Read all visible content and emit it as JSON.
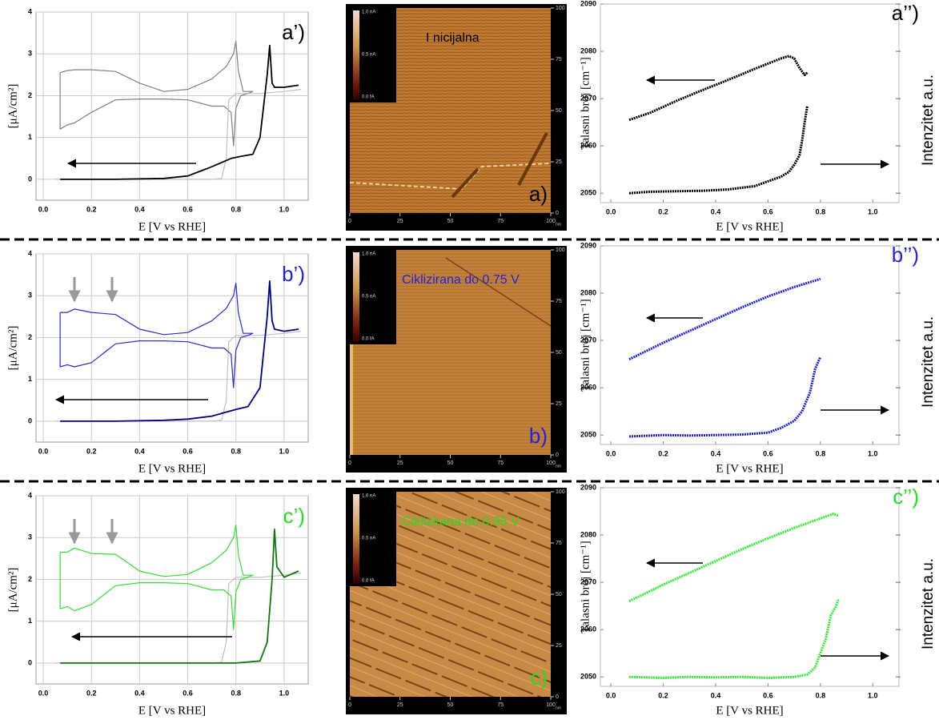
{
  "chart_data": [
    {
      "type": "line",
      "annotation": "a’)",
      "annotation_color": "#000000",
      "xlabel": "E [V vs RHE]",
      "ylabel": "[μA/cm²]",
      "grid": true,
      "xlim": [
        -0.03,
        1.1
      ],
      "ylim": [
        -0.5,
        4
      ],
      "xticks": [
        {
          "value": 0,
          "label": "0.0"
        },
        0.2,
        0.4,
        0.6,
        0.8,
        {
          "value": 1,
          "label": "1.0"
        }
      ],
      "yticks": [
        0,
        1,
        2,
        3,
        4
      ],
      "series": [
        {
          "color": "#808080",
          "x": [
            0.07,
            0.1,
            0.13,
            0.2,
            0.3,
            0.4,
            0.5,
            0.6,
            0.7,
            0.76,
            0.79,
            0.8,
            0.81,
            0.83,
            0.87,
            0.85,
            0.82,
            0.8,
            0.79,
            0.78,
            0.75,
            0.7,
            0.6,
            0.5,
            0.4,
            0.3,
            0.2,
            0.13,
            0.1,
            0.07,
            0.07
          ],
          "values": [
            2.55,
            2.6,
            2.62,
            2.62,
            2.58,
            2.3,
            2.1,
            2.15,
            2.4,
            2.7,
            3.0,
            3.3,
            2.6,
            2.1,
            2.1,
            2.05,
            2.0,
            1.7,
            0.8,
            1.6,
            1.75,
            1.75,
            1.9,
            1.92,
            1.92,
            1.9,
            1.6,
            1.35,
            1.3,
            1.2,
            2.55
          ]
        },
        {
          "color": "#c0c0c0",
          "x": [
            0.05,
            0.7,
            0.74,
            0.76,
            0.77,
            0.8,
            0.9,
            1.0,
            1.07
          ],
          "values": [
            0,
            0,
            0.02,
            0.5,
            1.9,
            2.05,
            2.05,
            2.1,
            2.15
          ]
        },
        {
          "color": "#000000",
          "x": [
            0.07,
            0.3,
            0.5,
            0.6,
            0.7,
            0.78,
            0.82,
            0.87,
            0.9,
            0.93,
            0.94,
            0.95,
            0.96,
            1.0,
            1.06
          ],
          "values": [
            0,
            0,
            0.02,
            0.08,
            0.3,
            0.5,
            0.55,
            0.6,
            1.0,
            2.5,
            3.2,
            2.3,
            2.2,
            2.2,
            2.25
          ]
        }
      ]
    },
    {
      "type": "image",
      "title": "I nicijalna",
      "title_color": "#000000",
      "label": "a)",
      "label_color": "#000000",
      "texture": "terraces",
      "colorbar": [
        "1.0 nA",
        "0.5 nA",
        "0.0 fA"
      ],
      "unit": "nm",
      "xlim": [
        0,
        100
      ],
      "ylim": [
        0,
        100
      ],
      "xticks": [
        0,
        25,
        50,
        75,
        100
      ],
      "yticks": [
        0,
        25,
        50,
        75,
        100
      ]
    },
    {
      "type": "line",
      "annotation": "a’’)",
      "annotation_color": "#000000",
      "xlabel": "E [V vs RHE]",
      "ylabel": "Talasni broj [cm⁻¹]",
      "y2label": "Intenzitet a.u.",
      "grid": false,
      "xlim": [
        -0.04,
        1.1
      ],
      "ylim": [
        2048,
        2090
      ],
      "xticks": [
        {
          "value": 0,
          "label": "0.0"
        },
        0.2,
        0.4,
        0.6,
        0.8,
        {
          "value": 1,
          "label": "1.0"
        }
      ],
      "yticks": [
        2050,
        2060,
        2070,
        2080,
        2090
      ],
      "series": [
        {
          "color": "#000000",
          "x": [
            0.07,
            0.15,
            0.25,
            0.35,
            0.45,
            0.55,
            0.65,
            0.68,
            0.7,
            0.72,
            0.74,
            0.75
          ],
          "values": [
            2065.5,
            2067,
            2069.5,
            2071.8,
            2074,
            2076.3,
            2078.5,
            2079,
            2078.5,
            2076.5,
            2075,
            2075.5
          ]
        },
        {
          "color": "#000000",
          "x": [
            0.07,
            0.15,
            0.25,
            0.35,
            0.45,
            0.55,
            0.6,
            0.65,
            0.68,
            0.7,
            0.72,
            0.73,
            0.74,
            0.75
          ],
          "values": [
            2050,
            2050.3,
            2050.4,
            2050.5,
            2050.8,
            2051.5,
            2052.5,
            2053.5,
            2054.5,
            2056,
            2058,
            2061,
            2065,
            2068.5
          ]
        }
      ]
    },
    {
      "type": "line",
      "annotation": "b’)",
      "annotation_color": "#2222dd",
      "xlabel": "E [V vs RHE]",
      "ylabel": "[μA/cm²]",
      "grid": true,
      "xlim": [
        -0.03,
        1.1
      ],
      "ylim": [
        -0.5,
        4
      ],
      "xticks": [
        {
          "value": 0,
          "label": "0.0"
        },
        0.2,
        0.4,
        0.6,
        0.8,
        {
          "value": 1,
          "label": "1.0"
        }
      ],
      "yticks": [
        0,
        1,
        2,
        3,
        4
      ],
      "series": [
        {
          "color": "#c0c0c0",
          "x": [
            0.05,
            0.7,
            0.74,
            0.76,
            0.77,
            0.8,
            0.9,
            1.0,
            1.07
          ],
          "values": [
            0,
            0,
            0.02,
            0.5,
            1.9,
            2.05,
            2.05,
            2.1,
            2.15
          ]
        },
        {
          "color": "#2a2ad0",
          "x": [
            0.07,
            0.1,
            0.13,
            0.2,
            0.3,
            0.4,
            0.5,
            0.6,
            0.7,
            0.76,
            0.79,
            0.8,
            0.81,
            0.83,
            0.87,
            0.85,
            0.82,
            0.8,
            0.79,
            0.78,
            0.75,
            0.7,
            0.6,
            0.5,
            0.4,
            0.3,
            0.2,
            0.13,
            0.1,
            0.07,
            0.07
          ],
          "values": [
            2.6,
            2.6,
            2.68,
            2.6,
            2.55,
            2.2,
            2.07,
            2.12,
            2.4,
            2.7,
            3.0,
            3.3,
            2.6,
            2.1,
            2.1,
            2.05,
            2.0,
            1.7,
            0.8,
            1.6,
            1.75,
            1.75,
            1.9,
            1.92,
            1.92,
            1.85,
            1.4,
            1.3,
            1.35,
            1.3,
            2.6
          ]
        },
        {
          "color": "#000080",
          "x": [
            0.07,
            0.3,
            0.5,
            0.6,
            0.7,
            0.75,
            0.8,
            0.85,
            0.9,
            0.93,
            0.94,
            0.95,
            0.96,
            1.0,
            1.06
          ],
          "values": [
            0,
            0,
            0.02,
            0.05,
            0.12,
            0.2,
            0.28,
            0.35,
            0.8,
            2.5,
            3.35,
            2.4,
            2.2,
            2.15,
            2.2
          ]
        }
      ]
    },
    {
      "type": "image",
      "title": "Ciklizirana do 0.75 V",
      "title_color": "#2222dd",
      "label": "b)",
      "label_color": "#2222dd",
      "texture": "flat",
      "colorbar": [
        "1.0 nA",
        "0.5 nA",
        "0.0 fA"
      ],
      "unit": "nm",
      "xlim": [
        0,
        100
      ],
      "ylim": [
        0,
        100
      ],
      "xticks": [
        0,
        25,
        50,
        75,
        100
      ],
      "yticks": [
        0,
        25,
        50,
        75,
        100
      ]
    },
    {
      "type": "line",
      "annotation": "b’’)",
      "annotation_color": "#2222dd",
      "xlabel": "E [V vs RHE]",
      "ylabel": "Talasni broj [cm⁻¹]",
      "y2label": "Intenzitet a.u.",
      "grid": false,
      "xlim": [
        -0.04,
        1.1
      ],
      "ylim": [
        2048,
        2090
      ],
      "xticks": [
        {
          "value": 0,
          "label": "0.0"
        },
        0.2,
        0.4,
        0.6,
        0.8,
        {
          "value": 1,
          "label": "1.0"
        }
      ],
      "yticks": [
        2050,
        2060,
        2070,
        2080,
        2090
      ],
      "series": [
        {
          "color": "#2222dd",
          "x": [
            0.07,
            0.2,
            0.3,
            0.4,
            0.5,
            0.6,
            0.7,
            0.8
          ],
          "values": [
            2066,
            2069.5,
            2072,
            2074.5,
            2077,
            2079.3,
            2081.3,
            2083
          ]
        },
        {
          "color": "#2222dd",
          "x": [
            0.07,
            0.2,
            0.3,
            0.4,
            0.5,
            0.6,
            0.65,
            0.7,
            0.73,
            0.76,
            0.78,
            0.8
          ],
          "values": [
            2049.7,
            2050,
            2049.9,
            2050,
            2050.1,
            2050.5,
            2051.5,
            2053,
            2055,
            2059,
            2064,
            2066.5
          ]
        }
      ]
    },
    {
      "type": "line",
      "annotation": "c’)",
      "annotation_color": "#22dd22",
      "xlabel": "E [V vs RHE]",
      "ylabel": "[μA/cm²]",
      "grid": true,
      "xlim": [
        -0.03,
        1.1
      ],
      "ylim": [
        -0.5,
        4
      ],
      "xticks": [
        {
          "value": 0,
          "label": "0.0"
        },
        0.2,
        0.4,
        0.6,
        0.8,
        {
          "value": 1,
          "label": "1.0"
        }
      ],
      "yticks": [
        0,
        1,
        2,
        3,
        4
      ],
      "series": [
        {
          "color": "#c0c0c0",
          "x": [
            0.05,
            0.7,
            0.74,
            0.76,
            0.77,
            0.8,
            0.9,
            1.0,
            1.07
          ],
          "values": [
            0,
            0,
            0.02,
            0.5,
            1.9,
            2.05,
            2.05,
            2.1,
            2.15
          ]
        },
        {
          "color": "#33dd33",
          "x": [
            0.07,
            0.1,
            0.13,
            0.2,
            0.3,
            0.4,
            0.5,
            0.6,
            0.7,
            0.76,
            0.79,
            0.8,
            0.81,
            0.83,
            0.87,
            0.85,
            0.82,
            0.8,
            0.79,
            0.78,
            0.75,
            0.7,
            0.6,
            0.5,
            0.4,
            0.3,
            0.2,
            0.13,
            0.1,
            0.07,
            0.07
          ],
          "values": [
            2.65,
            2.65,
            2.75,
            2.62,
            2.6,
            2.2,
            2.07,
            2.12,
            2.4,
            2.7,
            3.0,
            3.3,
            2.6,
            2.1,
            2.1,
            2.05,
            2.0,
            1.7,
            0.8,
            1.6,
            1.75,
            1.75,
            1.9,
            1.92,
            1.92,
            1.85,
            1.4,
            1.25,
            1.35,
            1.3,
            2.65
          ]
        },
        {
          "color": "#117711",
          "x": [
            0.07,
            0.5,
            0.8,
            0.9,
            0.93,
            0.95,
            0.96,
            0.97,
            1.0,
            1.06
          ],
          "values": [
            0,
            0,
            0,
            0.05,
            0.5,
            2.0,
            3.2,
            2.3,
            2.05,
            2.2
          ]
        }
      ]
    },
    {
      "type": "image",
      "title": "Ciklizirana do 0.95 V",
      "title_color": "#22dd22",
      "label": "c)",
      "label_color": "#22dd22",
      "texture": "steps",
      "colorbar": [
        "1.0 nA",
        "0.5 nA",
        "0.0 fA"
      ],
      "unit": "nm",
      "xlim": [
        0,
        100
      ],
      "ylim": [
        0,
        100
      ],
      "xticks": [
        0,
        25,
        50,
        75,
        100
      ],
      "yticks": [
        0,
        25,
        50,
        75,
        100
      ]
    },
    {
      "type": "line",
      "annotation": "c’’)",
      "annotation_color": "#22dd22",
      "xlabel": "E [V vs RHE]",
      "ylabel": "Talasni broj [cm⁻¹]",
      "y2label": "Intenzitet a.u.",
      "grid": false,
      "xlim": [
        -0.04,
        1.1
      ],
      "ylim": [
        2048,
        2090
      ],
      "xticks": [
        {
          "value": 0,
          "label": "0.0"
        },
        0.2,
        0.4,
        0.6,
        0.8,
        {
          "value": 1,
          "label": "1.0"
        }
      ],
      "yticks": [
        2050,
        2060,
        2070,
        2080,
        2090
      ],
      "series": [
        {
          "color": "#33ee33",
          "x": [
            0.07,
            0.2,
            0.3,
            0.4,
            0.5,
            0.6,
            0.7,
            0.8,
            0.85,
            0.87
          ],
          "values": [
            2066,
            2069.5,
            2072,
            2074.5,
            2077,
            2079.3,
            2081.5,
            2083.5,
            2084.5,
            2084
          ]
        },
        {
          "color": "#33ee33",
          "x": [
            0.07,
            0.2,
            0.3,
            0.4,
            0.5,
            0.6,
            0.7,
            0.75,
            0.78,
            0.8,
            0.82,
            0.84,
            0.86,
            0.87
          ],
          "values": [
            2050,
            2049.8,
            2050,
            2049.9,
            2050,
            2049.8,
            2050,
            2050.5,
            2052,
            2055,
            2058,
            2063,
            2065,
            2066.5
          ]
        }
      ]
    }
  ]
}
